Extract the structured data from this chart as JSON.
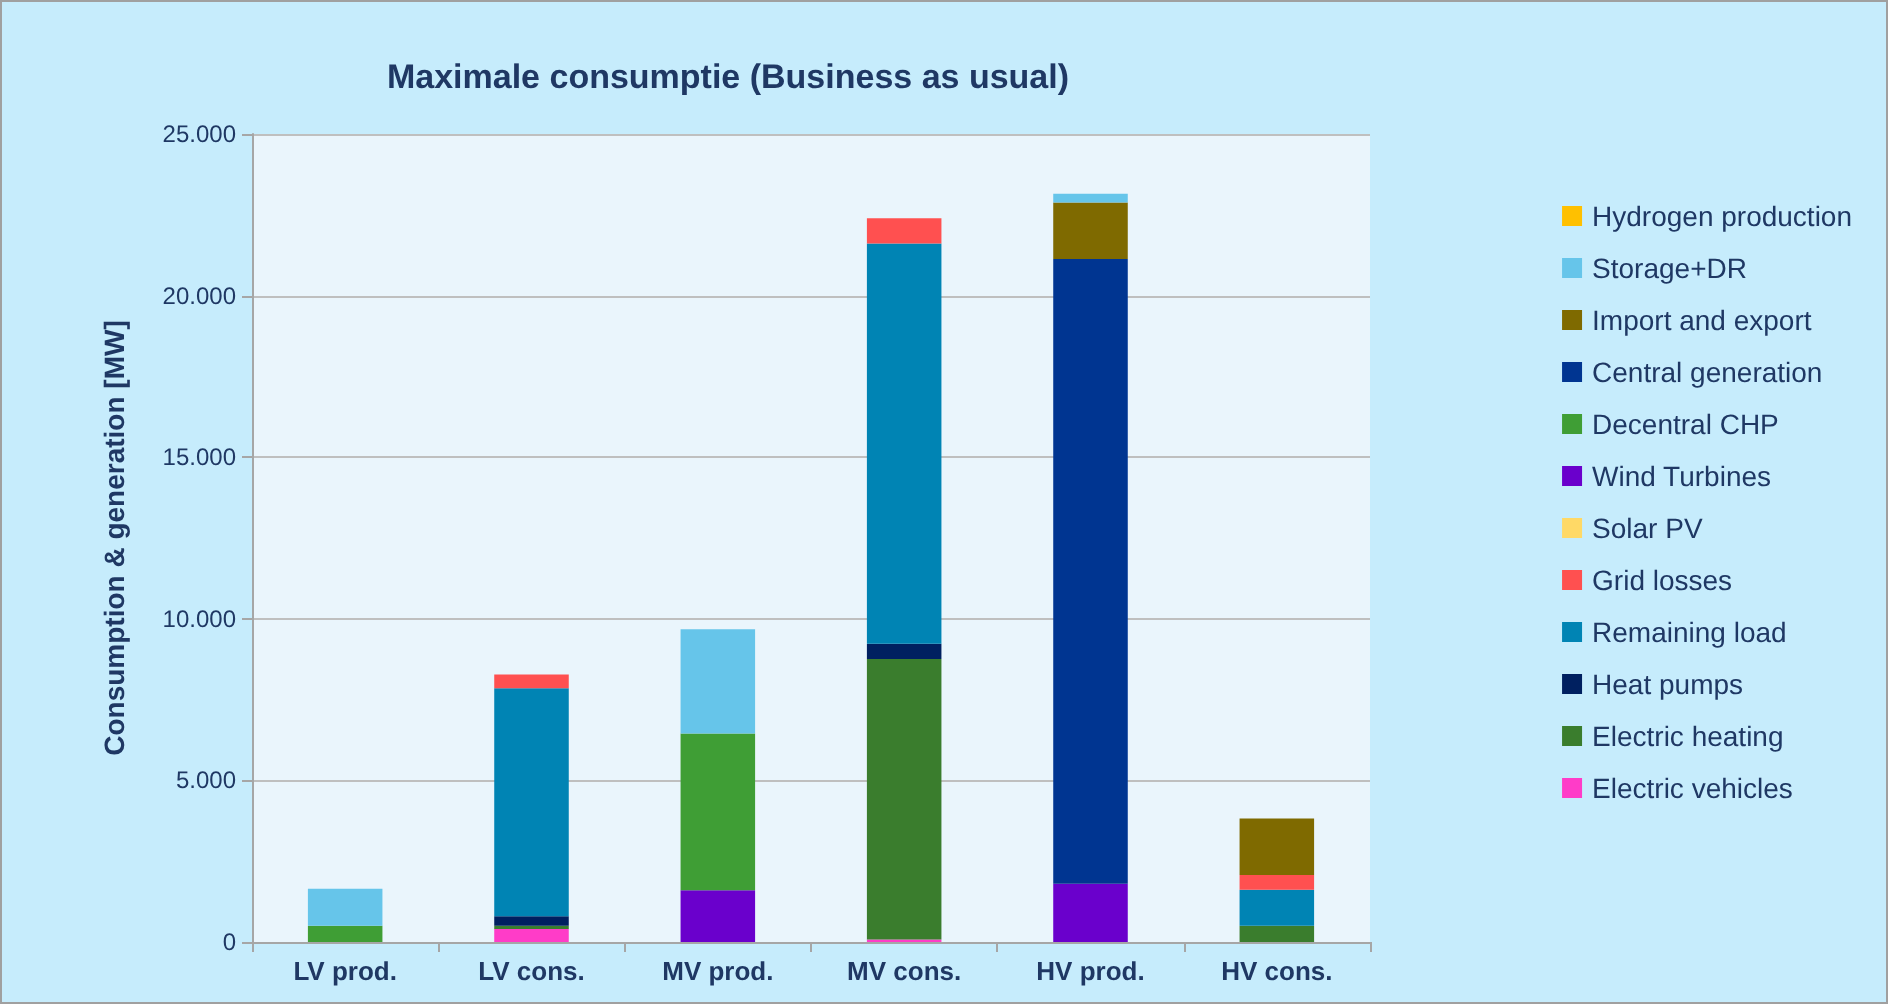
{
  "chart_data": {
    "type": "bar",
    "title": "Maximale consumptie (Business as usual)",
    "ylabel": "Consumption & generation [MW]",
    "categories": [
      "LV prod.",
      "LV cons.",
      "MV prod.",
      "MV cons.",
      "HV prod.",
      "HV cons."
    ],
    "stacked": true,
    "grid": "y",
    "legend": "right",
    "ylim": [
      0,
      25000
    ],
    "yticks": [
      {
        "value": 0,
        "label": "0"
      },
      {
        "value": 5000,
        "label": "5.000"
      },
      {
        "value": 10000,
        "label": "10.000"
      },
      {
        "value": 15000,
        "label": "15.000"
      },
      {
        "value": 20000,
        "label": "20.000"
      },
      {
        "value": 25000,
        "label": "25.000"
      }
    ],
    "series": [
      {
        "name": "Electric vehicles",
        "color": "#ff3cc8",
        "values": [
          0,
          400,
          0,
          80,
          0,
          0
        ]
      },
      {
        "name": "Electric heating",
        "color": "#3a7d2d",
        "values": [
          0,
          100,
          0,
          8680,
          0,
          500
        ]
      },
      {
        "name": "Heat pumps",
        "color": "#002060",
        "values": [
          0,
          300,
          0,
          470,
          0,
          0
        ]
      },
      {
        "name": "Remaining load",
        "color": "#0084b4",
        "values": [
          0,
          7050,
          0,
          12380,
          0,
          1120
        ]
      },
      {
        "name": "Grid losses",
        "color": "#ff5050",
        "values": [
          0,
          430,
          0,
          780,
          0,
          450
        ]
      },
      {
        "name": "Solar PV",
        "color": "#ffd966",
        "values": [
          0,
          0,
          0,
          0,
          0,
          0
        ]
      },
      {
        "name": "Wind Turbines",
        "color": "#6a00cc",
        "values": [
          0,
          0,
          1600,
          0,
          1800,
          0
        ]
      },
      {
        "name": "Decentral CHP",
        "color": "#3f9e35",
        "values": [
          500,
          0,
          4850,
          0,
          0,
          0
        ]
      },
      {
        "name": "Central generation",
        "color": "#003591",
        "values": [
          0,
          0,
          0,
          0,
          19330,
          0
        ]
      },
      {
        "name": "Import and export",
        "color": "#7f6a00",
        "values": [
          0,
          0,
          0,
          0,
          1750,
          1750
        ]
      },
      {
        "name": "Storage+DR",
        "color": "#66c5ea",
        "values": [
          1150,
          0,
          3230,
          0,
          270,
          0
        ]
      },
      {
        "name": "Hydrogen production",
        "color": "#ffc000",
        "values": [
          0,
          0,
          0,
          0,
          0,
          0
        ]
      }
    ]
  }
}
